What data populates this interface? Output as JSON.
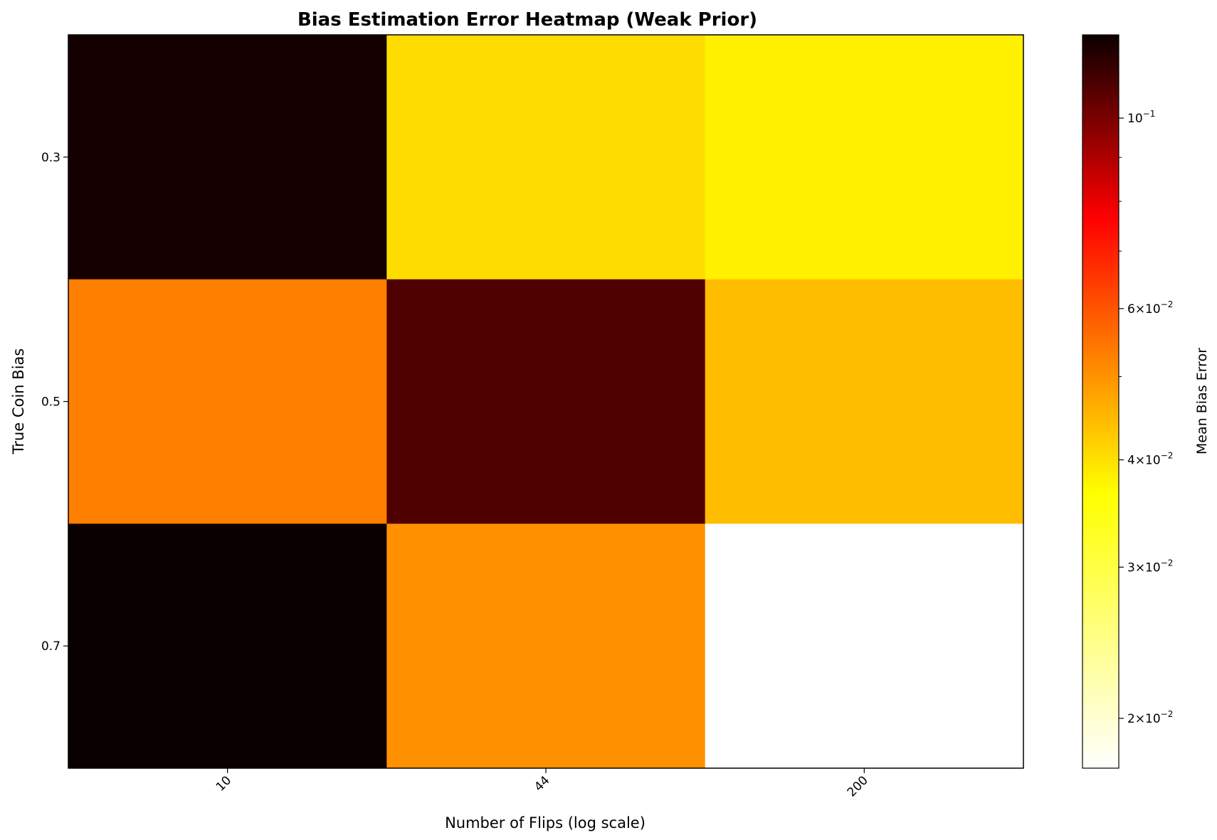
{
  "chart_data": {
    "type": "heatmap",
    "title": "Bias Estimation Error Heatmap (Weak Prior)",
    "xlabel": "Number of Flips (log scale)",
    "ylabel": "True Coin Bias",
    "x_categories": [
      "10",
      "44",
      "200"
    ],
    "y_categories": [
      "0.3",
      "0.5",
      "0.7"
    ],
    "values": [
      [
        0.118,
        0.032,
        0.03
      ],
      [
        0.042,
        0.1,
        0.035
      ],
      [
        0.125,
        0.04,
        0.0175
      ]
    ],
    "colormap": "hot_r",
    "color_scale": "log",
    "color_range": [
      0.0175,
      0.125
    ],
    "colorbar": {
      "label": "Mean Bias Error",
      "ticks": [
        {
          "value": 0.1,
          "mantissa": "",
          "exponent": "−1"
        },
        {
          "value": 0.06,
          "mantissa": "6",
          "exponent": "−2"
        },
        {
          "value": 0.04,
          "mantissa": "4",
          "exponent": "−2"
        },
        {
          "value": 0.03,
          "mantissa": "3",
          "exponent": "−2"
        },
        {
          "value": 0.02,
          "mantissa": "2",
          "exponent": "−2"
        }
      ],
      "minor_ticks": [
        0.05,
        0.07,
        0.08,
        0.09
      ]
    },
    "grid": false
  }
}
